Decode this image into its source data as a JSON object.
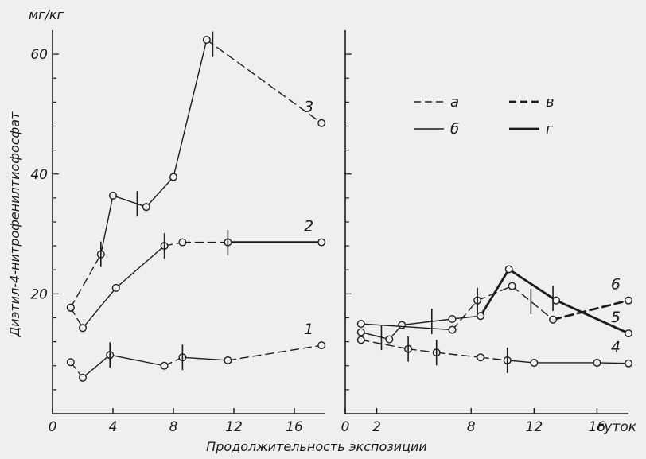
{
  "chart_data": [
    {
      "type": "line",
      "unit_label": "мг/кг",
      "ylabel": "Диэтил-4-нитрофенилтиофосфат",
      "xlabel": "",
      "ylim": [
        0,
        60
      ],
      "xlim": [
        0,
        18
      ],
      "x_ticks": [
        "0",
        "4",
        "8",
        "12",
        "16"
      ],
      "y_ticks": [
        "20",
        "40",
        "60"
      ],
      "curves": [
        {
          "label": "1",
          "points": [
            [
              1.2,
              8.6
            ],
            [
              2.0,
              6.0
            ],
            [
              3.8,
              9.8
            ],
            [
              7.4,
              8.0
            ],
            [
              8.6,
              9.4
            ],
            [
              11.6,
              8.9
            ],
            [
              17.8,
              11.4
            ]
          ],
          "segment_styles": [
            "a",
            "b",
            "b",
            "a",
            "b",
            "a"
          ],
          "error_bars_at": [
            3.8,
            8.6
          ]
        },
        {
          "label": "2",
          "points": [
            [
              1.2,
              17.7
            ],
            [
              2.0,
              14.3
            ],
            [
              4.2,
              21.0
            ],
            [
              7.4,
              28.0
            ],
            [
              8.6,
              28.6
            ],
            [
              11.6,
              28.6
            ],
            [
              17.8,
              28.6
            ]
          ],
          "segment_styles": [
            "a",
            "b",
            "b",
            "a",
            "a",
            "г"
          ],
          "error_bars_at": [
            7.4,
            11.6
          ]
        },
        {
          "label": "3",
          "points": [
            [
              1.2,
              17.7
            ],
            [
              3.2,
              26.6
            ],
            [
              4.0,
              36.4
            ],
            [
              6.2,
              34.5
            ],
            [
              8.0,
              39.5
            ],
            [
              10.2,
              62.4
            ],
            [
              17.8,
              48.5
            ]
          ],
          "segment_styles": [
            "a",
            "b",
            "b",
            "b",
            "b",
            "a"
          ],
          "error_bars_at": [
            3.2,
            5.6,
            10.6
          ]
        }
      ]
    },
    {
      "type": "line",
      "xlabel": "",
      "xlim": [
        0,
        18
      ],
      "x_ticks": [
        "0",
        "2",
        "8",
        "12",
        "16"
      ],
      "x_unit": "суток",
      "legend": {
        "placement": "top-right",
        "items": [
          {
            "key": "a",
            "style": "dashed-thin"
          },
          {
            "key": "в",
            "style": "dashed-thick"
          },
          {
            "key": "б",
            "style": "solid-thin"
          },
          {
            "key": "г",
            "style": "solid-thick"
          }
        ]
      },
      "curves": [
        {
          "label": "4",
          "points": [
            [
              1.0,
              12.3
            ],
            [
              4.0,
              10.8
            ],
            [
              5.8,
              10.2
            ],
            [
              8.6,
              9.4
            ],
            [
              10.3,
              8.9
            ],
            [
              12.0,
              8.5
            ],
            [
              16.0,
              8.5
            ],
            [
              18.0,
              8.4
            ]
          ],
          "segment_styles": [
            "a",
            "a",
            "a",
            "a",
            "b",
            "b",
            "b"
          ],
          "error_bars_at": [
            4.0,
            5.8,
            10.3
          ]
        },
        {
          "label": "5",
          "points": [
            [
              1.0,
              13.6
            ],
            [
              2.8,
              12.4
            ],
            [
              3.6,
              14.8
            ],
            [
              6.8,
              15.8
            ],
            [
              8.6,
              16.3
            ],
            [
              10.4,
              24.1
            ],
            [
              13.4,
              18.9
            ],
            [
              18.0,
              13.4
            ]
          ],
          "segment_styles": [
            "b",
            "b",
            "b",
            "b",
            "г",
            "г",
            "г"
          ],
          "error_bars_at": [
            2.3,
            5.5,
            13.2
          ]
        },
        {
          "label": "6",
          "points": [
            [
              1.0,
              15.0
            ],
            [
              6.8,
              14.0
            ],
            [
              8.4,
              18.9
            ],
            [
              10.6,
              21.3
            ],
            [
              13.2,
              15.7
            ],
            [
              18.0,
              18.9
            ]
          ],
          "segment_styles": [
            "b",
            "a",
            "a",
            "a",
            "в"
          ],
          "error_bars_at": [
            8.4,
            11.8
          ]
        }
      ]
    }
  ],
  "axis": {
    "x_title": "Продолжительность экспозиции"
  }
}
